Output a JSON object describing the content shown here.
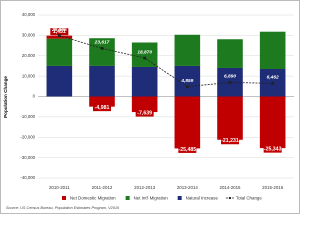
{
  "chart_data": {
    "type": "bar",
    "y_label": "Population Change",
    "source": "Source: US Census Bureau, Population Estimates Program, V2016",
    "categories": [
      "2010-2011",
      "2011-2012",
      "2012-2013",
      "2013-2014",
      "2014-2015",
      "2015-2016"
    ],
    "series": [
      {
        "name": "Net Domestic Migration",
        "type": "bar",
        "color": "#c00000",
        "values": [
          1451,
          -4981,
          -7639,
          -25485,
          -21231,
          -25343
        ],
        "value_labels": [
          "1,451",
          "-4,981",
          "-7,639",
          "-25,485",
          "-21,231",
          "-25,343"
        ]
      },
      {
        "name": "Net Int'l Migration",
        "type": "bar",
        "color": "#1e7a1e",
        "values": [
          13400,
          13600,
          12000,
          15300,
          14100,
          18300
        ]
      },
      {
        "name": "Natural Increase",
        "type": "bar",
        "color": "#1f2d78",
        "values": [
          15000,
          15000,
          14500,
          15000,
          14000,
          13500
        ]
      },
      {
        "name": "Total Change",
        "type": "line",
        "color": "#222222",
        "values": [
          29865,
          23617,
          18870,
          4859,
          6890,
          6462
        ],
        "value_labels": [
          "29,865",
          "23,617",
          "18,870",
          "4,859",
          "6,890",
          "6,462"
        ]
      }
    ],
    "ylim": [
      -40000,
      40000
    ],
    "yticks": [
      {
        "value": -40000,
        "label": "-40,000"
      },
      {
        "value": -30000,
        "label": "-30,000"
      },
      {
        "value": -20000,
        "label": "-20,000"
      },
      {
        "value": -10000,
        "label": "-10,000"
      },
      0,
      {
        "value": 10000,
        "label": "10,000"
      },
      {
        "value": 20000,
        "label": "20,000"
      },
      {
        "value": 30000,
        "label": "30,000"
      },
      {
        "value": 40000,
        "label": "40,000"
      }
    ],
    "grid": true
  }
}
